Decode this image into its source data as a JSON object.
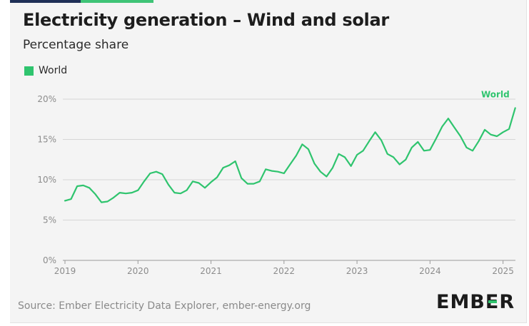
{
  "header": {
    "title": "Electricity generation – Wind and solar",
    "subtitle": "Percentage share"
  },
  "legend": {
    "label": "World",
    "color": "#2fc46e"
  },
  "footer": {
    "source": "Source: Ember Electricity Data Explorer, ember-energy.org",
    "logo": "EMBER",
    "logo_accent_color": "#2fc46e"
  },
  "chart_data": {
    "type": "line",
    "title": "Electricity generation – Wind and solar",
    "subtitle": "Percentage share",
    "x_ticks": [
      "2019",
      "2020",
      "2021",
      "2022",
      "2023",
      "2024",
      "2025"
    ],
    "y_ticks": [
      "0%",
      "5%",
      "10%",
      "15%",
      "20%"
    ],
    "ylim": [
      0,
      20
    ],
    "xlim": [
      2019.0,
      2025.17
    ],
    "grid": true,
    "legend_placement": "top-left",
    "series": [
      {
        "name": "World",
        "color": "#2fc46e",
        "end_label": "World",
        "x": [
          2019.0,
          2019.083,
          2019.167,
          2019.25,
          2019.333,
          2019.417,
          2019.5,
          2019.583,
          2019.667,
          2019.75,
          2019.833,
          2019.917,
          2020.0,
          2020.083,
          2020.167,
          2020.25,
          2020.333,
          2020.417,
          2020.5,
          2020.583,
          2020.667,
          2020.75,
          2020.833,
          2020.917,
          2021.0,
          2021.083,
          2021.167,
          2021.25,
          2021.333,
          2021.417,
          2021.5,
          2021.583,
          2021.667,
          2021.75,
          2021.833,
          2021.917,
          2022.0,
          2022.083,
          2022.167,
          2022.25,
          2022.333,
          2022.417,
          2022.5,
          2022.583,
          2022.667,
          2022.75,
          2022.833,
          2022.917,
          2023.0,
          2023.083,
          2023.167,
          2023.25,
          2023.333,
          2023.417,
          2023.5,
          2023.583,
          2023.667,
          2023.75,
          2023.833,
          2023.917,
          2024.0,
          2024.083,
          2024.167,
          2024.25,
          2024.333,
          2024.417,
          2024.5,
          2024.583,
          2024.667,
          2024.75,
          2024.833,
          2024.917,
          2025.0,
          2025.083,
          2025.167
        ],
        "values": [
          7.4,
          7.6,
          9.2,
          9.3,
          9.0,
          8.2,
          7.2,
          7.3,
          7.8,
          8.4,
          8.3,
          8.4,
          8.7,
          9.8,
          10.8,
          11.0,
          10.7,
          9.4,
          8.4,
          8.3,
          8.7,
          9.8,
          9.6,
          9.0,
          9.7,
          10.3,
          11.5,
          11.8,
          12.3,
          10.2,
          9.5,
          9.5,
          9.8,
          11.3,
          11.1,
          11.0,
          10.8,
          11.9,
          13.0,
          14.4,
          13.8,
          12.0,
          11.0,
          10.4,
          11.5,
          13.2,
          12.8,
          11.7,
          13.1,
          13.6,
          14.8,
          15.9,
          14.9,
          13.2,
          12.8,
          11.9,
          12.5,
          14.0,
          14.7,
          13.6,
          13.7,
          15.1,
          16.6,
          17.6,
          16.5,
          15.4,
          14.0,
          13.6,
          14.8,
          16.2,
          15.6,
          15.4,
          15.9,
          16.3,
          18.9
        ]
      }
    ]
  }
}
